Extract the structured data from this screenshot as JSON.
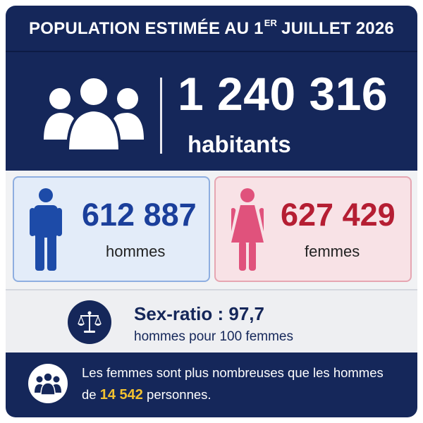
{
  "title": {
    "main": "POPULATION ESTIMÉE AU 1",
    "superscript": "ER",
    "rest": "JUILLET 2026"
  },
  "total": {
    "value": "1 240 316",
    "unit": "habitants"
  },
  "men": {
    "value": "612 887",
    "label": "hommes",
    "color": "#1b3f9b"
  },
  "women": {
    "value": "627 429",
    "label": "femmes",
    "color": "#b51e33"
  },
  "ratio": {
    "title": "Sex-ratio : 97,7",
    "subtitle": "hommes pour 100 femmes"
  },
  "difference": {
    "line1": "Les femmes sont plus nombreuses que les hommes",
    "prefix": "de",
    "value": "14 542",
    "suffix": "personnes."
  },
  "icons": {
    "total": "people-group-icon",
    "men": "man-icon",
    "women": "woman-icon",
    "ratio": "balance-scale-icon",
    "difference": "people-group-icon"
  },
  "colors": {
    "navy": "#15275a",
    "highlight": "#f2c230",
    "men_card": "#e3ecf9",
    "women_card": "#f8e2e6",
    "men_icon": "#1d4ba8",
    "women_icon": "#e0527c"
  }
}
